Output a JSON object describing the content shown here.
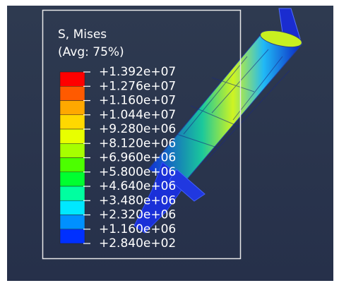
{
  "legend": {
    "title": "S, Mises",
    "subtitle": "(Avg: 75%)",
    "labels": [
      "+1.392e+07",
      "+1.276e+07",
      "+1.160e+07",
      "+1.044e+07",
      "+9.280e+06",
      "+8.120e+06",
      "+6.960e+06",
      "+5.800e+06",
      "+4.640e+06",
      "+3.480e+06",
      "+2.320e+06",
      "+1.160e+06",
      "+2.840e+02"
    ],
    "colors": [
      "#ff0000",
      "#ff5a00",
      "#ffa800",
      "#ffd800",
      "#e8ff00",
      "#a6ff00",
      "#4cff00",
      "#00ff30",
      "#00ffa0",
      "#00e8ff",
      "#0090ff",
      "#0030ff",
      "#0000d8"
    ]
  }
}
